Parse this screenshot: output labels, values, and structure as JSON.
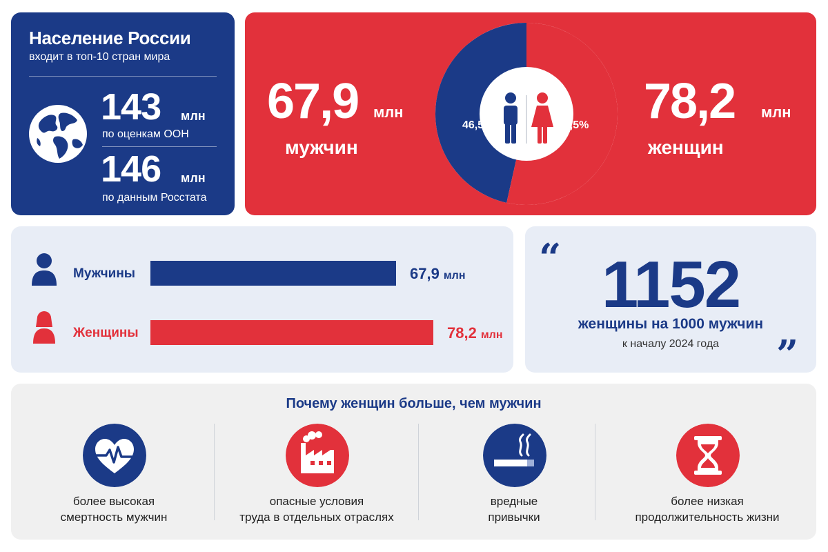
{
  "colors": {
    "blue": "#1b3a87",
    "red": "#e2313b",
    "light": "#e8edf6",
    "gray": "#f0f0f0"
  },
  "population": {
    "title": "Население России",
    "subtitle": "входит в топ-10 стран мира",
    "icon": "globe-icon",
    "estimates": [
      {
        "value": "143",
        "unit": "млн",
        "source": "по оценкам ООН"
      },
      {
        "value": "146",
        "unit": "млн",
        "source": "по данным Росстата"
      }
    ]
  },
  "gender": {
    "men": {
      "value": "67,9",
      "unit": "млн",
      "label": "мужчин",
      "share_label": "46,5%"
    },
    "women": {
      "value": "78,2",
      "unit": "млн",
      "label": "женщин",
      "share_label": "53,5%"
    }
  },
  "bars": {
    "unit": "млн",
    "rows": [
      {
        "name": "Мужчины",
        "value_label": "67,9",
        "icon": "man-icon"
      },
      {
        "name": "Женщины",
        "value_label": "78,2",
        "icon": "woman-icon"
      }
    ]
  },
  "ratio": {
    "open_quote": "“",
    "close_quote": "”",
    "number": "1152",
    "text": "женщины на 1000 мужчин",
    "subtext": "к началу 2024 года"
  },
  "reasons": {
    "title": "Почему женщин больше, чем мужчин",
    "items": [
      {
        "icon": "heart-pulse-icon",
        "line1": "более высокая",
        "line2": "смертность мужчин"
      },
      {
        "icon": "factory-icon",
        "line1": "опасные условия",
        "line2": "труда в отдельных отраслях"
      },
      {
        "icon": "cigarette-icon",
        "line1": "вредные",
        "line2": "привычки"
      },
      {
        "icon": "hourglass-icon",
        "line1": "более низкая",
        "line2": "продолжительность жизни"
      }
    ]
  },
  "chart_data": [
    {
      "type": "pie",
      "categories": [
        "мужчин",
        "женщин"
      ],
      "values": [
        46.5,
        53.5
      ]
    },
    {
      "type": "bar",
      "categories": [
        "Мужчины",
        "Женщины"
      ],
      "values": [
        67.9,
        78.2
      ],
      "unit": "млн"
    }
  ]
}
